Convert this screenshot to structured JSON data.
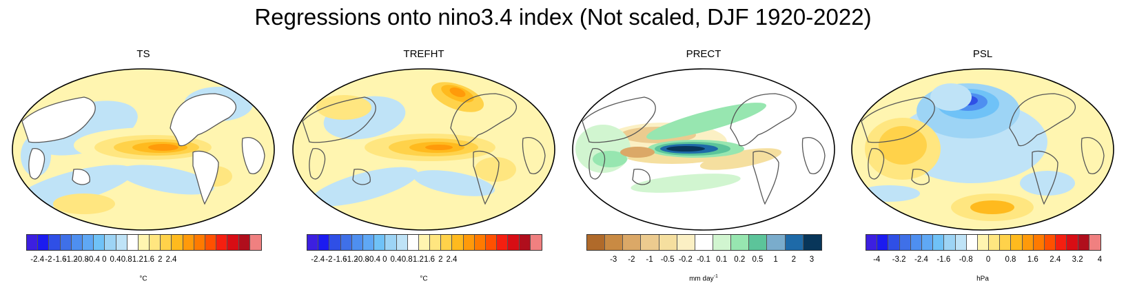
{
  "title": "Regressions onto nino3.4 index (Not scaled, DJF 1920-2022)",
  "panels": [
    {
      "id": "ts",
      "title": "TS",
      "units": "°C",
      "units_sup": "",
      "map_style": "temp-ts",
      "colors": [
        "#3c1fe0",
        "#1b1bf0",
        "#2f4fe6",
        "#3f70e8",
        "#4e8ff0",
        "#5fa8f5",
        "#6fc2f7",
        "#9dd4f5",
        "#bfe3f7",
        "#ffffff",
        "#fff5b0",
        "#ffe680",
        "#ffd24a",
        "#ffba1e",
        "#ff9a0a",
        "#ff7a00",
        "#ff5100",
        "#f51f10",
        "#d80d14",
        "#b00e1c",
        "#f08080"
      ],
      "ticks": [
        "-2.4",
        "-2",
        "-1.6",
        "-1.2",
        "-0.8",
        "-0.4",
        "0",
        "0.4",
        "0.8",
        "1.2",
        "1.6",
        "2",
        "2.4"
      ]
    },
    {
      "id": "trefht",
      "title": "TREFHT",
      "units": "°C",
      "units_sup": "",
      "map_style": "temp-trefht",
      "colors": [
        "#3c1fe0",
        "#1b1bf0",
        "#2f4fe6",
        "#3f70e8",
        "#4e8ff0",
        "#5fa8f5",
        "#6fc2f7",
        "#9dd4f5",
        "#bfe3f7",
        "#ffffff",
        "#fff5b0",
        "#ffe680",
        "#ffd24a",
        "#ffba1e",
        "#ff9a0a",
        "#ff7a00",
        "#ff5100",
        "#f51f10",
        "#d80d14",
        "#b00e1c",
        "#f08080"
      ],
      "ticks": [
        "-2.4",
        "-2",
        "-1.6",
        "-1.2",
        "-0.8",
        "-0.4",
        "0",
        "0.4",
        "0.8",
        "1.2",
        "1.6",
        "2",
        "2.4"
      ]
    },
    {
      "id": "prect",
      "title": "PRECT",
      "units": "mm day",
      "units_sup": "-1",
      "map_style": "precip",
      "colors": [
        "#b06a2a",
        "#c98a43",
        "#dba867",
        "#eccb8f",
        "#f5df9f",
        "#fbf0c4",
        "#ffffff",
        "#d1f5d0",
        "#97e6b0",
        "#5cc49a",
        "#7aaccc",
        "#1e6aa8",
        "#08365a"
      ],
      "ticks": [
        "-3",
        "-2",
        "-1",
        "-0.5",
        "-0.2",
        "-0.1",
        "0.1",
        "0.2",
        "0.5",
        "1",
        "2",
        "3"
      ]
    },
    {
      "id": "psl",
      "title": "PSL",
      "units": "hPa",
      "units_sup": "",
      "map_style": "pressure",
      "colors": [
        "#3c1fe0",
        "#1b1bf0",
        "#2f4fe6",
        "#3f70e8",
        "#4e8ff0",
        "#5fa8f5",
        "#6fc2f7",
        "#9dd4f5",
        "#bfe3f7",
        "#ffffff",
        "#fff5b0",
        "#ffe680",
        "#ffd24a",
        "#ffba1e",
        "#ff9a0a",
        "#ff7a00",
        "#ff5100",
        "#f51f10",
        "#d80d14",
        "#b00e1c",
        "#f08080"
      ],
      "ticks": [
        "-4",
        "-3.2",
        "-2.4",
        "-1.6",
        "-0.8",
        "0",
        "0.8",
        "1.6",
        "2.4",
        "3.2",
        "4"
      ]
    }
  ]
}
